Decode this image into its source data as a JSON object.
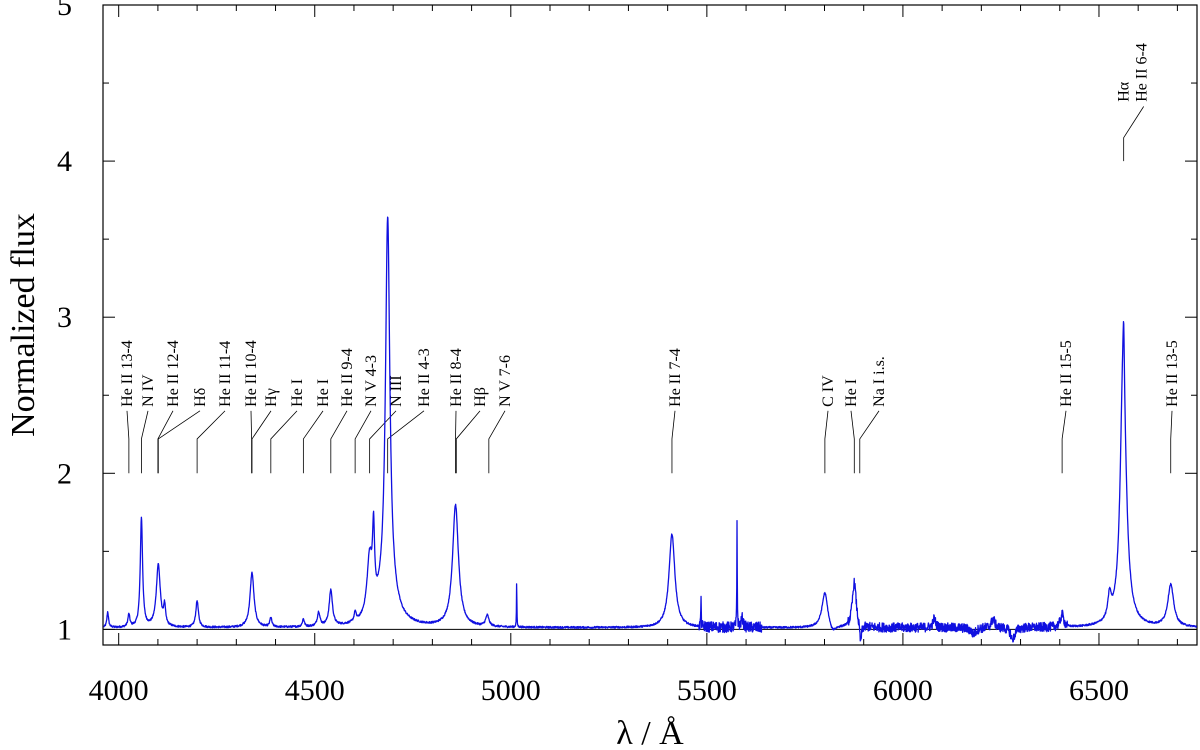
{
  "chart_data": {
    "type": "line",
    "title": "",
    "xlabel": "λ / Å",
    "ylabel": "Normalized flux",
    "xlim": [
      3960,
      6750
    ],
    "ylim": [
      0.9,
      5.0
    ],
    "xticks": [
      4000,
      4500,
      5000,
      5500,
      6000,
      6500
    ],
    "yticks": [
      1,
      2,
      3,
      4,
      5
    ],
    "grid": false,
    "continuum_level": 1,
    "colors": {
      "spectrum": "#1010e0",
      "axes": "#000000"
    },
    "series": [
      {
        "continuum": 1.01,
        "features": [
          [
            3972,
            1.1,
            2.5
          ],
          [
            4026,
            1.08,
            3
          ],
          [
            4058,
            1.7,
            3.5
          ],
          [
            4101,
            1.4,
            6
          ],
          [
            4117,
            1.12,
            3
          ],
          [
            4200,
            1.17,
            4
          ],
          [
            4340,
            1.35,
            6
          ],
          [
            4388,
            1.06,
            3
          ],
          [
            4471,
            1.05,
            3
          ],
          [
            4510,
            1.09,
            4
          ],
          [
            4541,
            1.23,
            5
          ],
          [
            4603,
            1.06,
            3
          ],
          [
            4640,
            1.38,
            8
          ],
          [
            4650,
            1.45,
            3
          ],
          [
            4686,
            3.37,
            6.5
          ],
          [
            4686,
            0.25,
            22
          ],
          [
            4859,
            1.78,
            9
          ],
          [
            4940,
            1.07,
            5
          ],
          [
            5015,
            0.3,
            0.6
          ],
          [
            5411,
            1.6,
            9
          ],
          [
            5485,
            0.2,
            0.6
          ],
          [
            5577,
            0.7,
            0.6
          ],
          [
            5590,
            0.06,
            3
          ],
          [
            5801,
            1.23,
            9
          ],
          [
            5876,
            1.29,
            6
          ],
          [
            6080,
            0.06,
            4
          ],
          [
            6230,
            0.06,
            5
          ],
          [
            6406,
            1.08,
            5
          ],
          [
            6527,
            1.15,
            5
          ],
          [
            6560,
            0.6,
            7
          ],
          [
            6563,
            2.1,
            10
          ],
          [
            6563,
            0.35,
            2
          ],
          [
            6683,
            1.27,
            9
          ]
        ],
        "absorptions": [
          [
            5892,
            -0.12,
            3
          ],
          [
            5820,
            -0.05,
            10
          ],
          [
            6280,
            -0.08,
            6
          ],
          [
            6180,
            -0.04,
            8
          ]
        ],
        "noisy_ranges": [
          [
            5480,
            5640,
            0.035
          ],
          [
            5860,
            6420,
            0.03
          ]
        ]
      }
    ],
    "line_ids": [
      {
        "label": "He II 13-4",
        "lambda": 4026
      },
      {
        "label": "N IV",
        "lambda": 4058
      },
      {
        "label": "He II 12-4",
        "lambda": 4100
      },
      {
        "label": "Hδ",
        "lambda": 4101
      },
      {
        "label": "He II 11-4",
        "lambda": 4200
      },
      {
        "label": "He II 10-4",
        "lambda": 4339
      },
      {
        "label": "Hγ",
        "lambda": 4340
      },
      {
        "label": "He I",
        "lambda": 4388
      },
      {
        "label": "He I",
        "lambda": 4471
      },
      {
        "label": "He II 9-4",
        "lambda": 4541
      },
      {
        "label": "N V 4-3",
        "lambda": 4603
      },
      {
        "label": "N III",
        "lambda": 4640
      },
      {
        "label": "He II 4-3",
        "lambda": 4686
      },
      {
        "label": "He II 8-4",
        "lambda": 4859
      },
      {
        "label": "Hβ",
        "lambda": 4861
      },
      {
        "label": "N V 7-6",
        "lambda": 4944
      },
      {
        "label": "He II 7-4",
        "lambda": 5411
      },
      {
        "label": "C IV",
        "lambda": 5801
      },
      {
        "label": "He I",
        "lambda": 5876
      },
      {
        "label": "Na I i.s.",
        "lambda": 5890
      },
      {
        "label": "He II 15-5",
        "lambda": 6406
      },
      {
        "label": "He II 13-5",
        "lambda": 6683
      },
      {
        "label": "Hα",
        "lambda": 6563
      },
      {
        "label": "He II 6-4",
        "lambda": 6560
      }
    ]
  }
}
